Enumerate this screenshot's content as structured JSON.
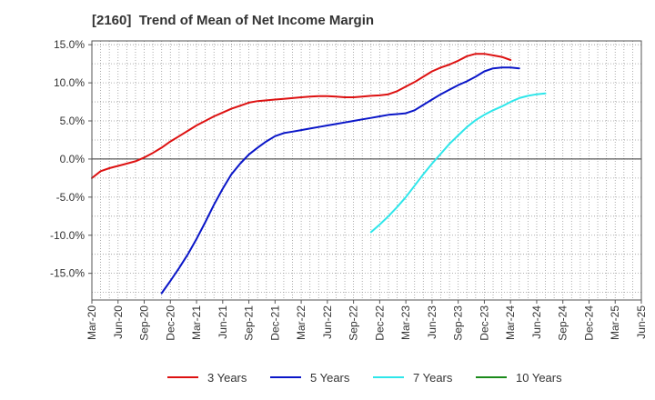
{
  "chart_data": {
    "type": "line",
    "title": "[2160]  Trend of Mean of Net Income Margin",
    "xlabel": "",
    "ylabel": "",
    "ylim": [
      -18.5,
      15.5
    ],
    "yticks": [
      15,
      10,
      5,
      0,
      -5,
      -10,
      -15
    ],
    "ytick_labels": [
      "15.0%",
      "10.0%",
      "5.0%",
      "0.0%",
      "-5.0%",
      "-10.0%",
      "-15.0%"
    ],
    "xtick_labels": [
      "Mar-20",
      "Jun-20",
      "Sep-20",
      "Dec-20",
      "Mar-21",
      "Jun-21",
      "Sep-21",
      "Dec-21",
      "Mar-22",
      "Jun-22",
      "Sep-22",
      "Dec-22",
      "Mar-23",
      "Jun-23",
      "Sep-23",
      "Dec-23",
      "Mar-24",
      "Jun-24",
      "Sep-24",
      "Dec-24",
      "Mar-25",
      "Jun-25"
    ],
    "grid": true,
    "legend_position": "bottom",
    "series": [
      {
        "name": "3 Years",
        "color": "#dd1111",
        "start": "Mar-20",
        "values": [
          -2.5,
          -1.6,
          -1.2,
          -0.9,
          -0.6,
          -0.3,
          0.2,
          0.8,
          1.5,
          2.3,
          3.0,
          3.7,
          4.4,
          5.0,
          5.6,
          6.1,
          6.6,
          7.0,
          7.4,
          7.6,
          7.7,
          7.8,
          7.9,
          8.0,
          8.1,
          8.2,
          8.25,
          8.25,
          8.2,
          8.1,
          8.1,
          8.2,
          8.3,
          8.35,
          8.5,
          8.9,
          9.5,
          10.1,
          10.8,
          11.5,
          12.0,
          12.4,
          12.9,
          13.5,
          13.8,
          13.8,
          13.6,
          13.4,
          13.0
        ]
      },
      {
        "name": "5 Years",
        "color": "#0a16c8",
        "start": "Nov-20",
        "values": [
          -17.6,
          -16.0,
          -14.3,
          -12.5,
          -10.5,
          -8.3,
          -6.0,
          -3.9,
          -2.0,
          -0.6,
          0.6,
          1.5,
          2.3,
          3.0,
          3.4,
          3.6,
          3.8,
          4.0,
          4.2,
          4.4,
          4.6,
          4.8,
          5.0,
          5.2,
          5.4,
          5.6,
          5.8,
          5.9,
          6.0,
          6.4,
          7.1,
          7.8,
          8.5,
          9.1,
          9.7,
          10.2,
          10.8,
          11.5,
          11.9,
          12.0,
          12.0,
          11.9
        ]
      },
      {
        "name": "7 Years",
        "color": "#2ee6ea",
        "start": "Nov-22",
        "values": [
          -9.6,
          -8.6,
          -7.5,
          -6.3,
          -5.0,
          -3.5,
          -2.0,
          -0.6,
          0.7,
          2.0,
          3.1,
          4.2,
          5.1,
          5.8,
          6.4,
          6.9,
          7.5,
          8.0,
          8.3,
          8.5,
          8.6
        ]
      },
      {
        "name": "10 Years",
        "color": "#1a8a1a",
        "start": "",
        "values": []
      }
    ]
  }
}
